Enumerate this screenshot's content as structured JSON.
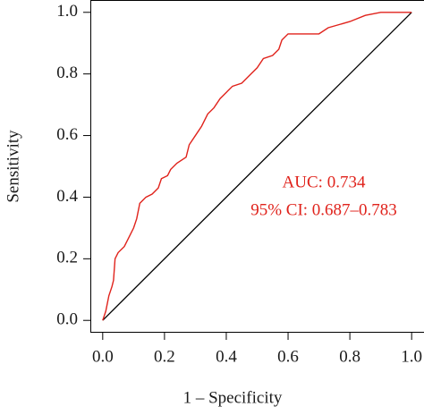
{
  "chart_data": {
    "type": "line",
    "x_label": "1 – Specificity",
    "y_label": "Sensitivity",
    "annotations": [
      "AUC: 0.734",
      "95% CI: 0.687–0.783"
    ],
    "annotation_color": "#e0231c",
    "color": "#e0231c",
    "x": [
      0,
      0.01,
      0.02,
      0.03,
      0.035,
      0.04,
      0.05,
      0.07,
      0.09,
      0.1,
      0.11,
      0.12,
      0.13,
      0.14,
      0.16,
      0.18,
      0.19,
      0.21,
      0.22,
      0.24,
      0.27,
      0.28,
      0.3,
      0.32,
      0.34,
      0.36,
      0.38,
      0.4,
      0.42,
      0.45,
      0.48,
      0.5,
      0.52,
      0.55,
      0.57,
      0.58,
      0.6,
      0.7,
      0.73,
      0.8,
      0.85,
      0.9,
      1.0
    ],
    "values": [
      0,
      0.03,
      0.08,
      0.11,
      0.13,
      0.2,
      0.22,
      0.24,
      0.28,
      0.3,
      0.33,
      0.38,
      0.39,
      0.4,
      0.41,
      0.43,
      0.46,
      0.47,
      0.49,
      0.51,
      0.53,
      0.57,
      0.6,
      0.63,
      0.67,
      0.69,
      0.72,
      0.74,
      0.76,
      0.77,
      0.8,
      0.82,
      0.85,
      0.86,
      0.88,
      0.91,
      0.93,
      0.93,
      0.95,
      0.97,
      0.99,
      1.0,
      1.0
    ],
    "diagonal": {
      "x": [
        0,
        1
      ],
      "y": [
        0,
        1
      ],
      "color": "#000000"
    },
    "xlim": [
      -0.04,
      1.04
    ],
    "ylim": [
      -0.04,
      1.04
    ],
    "xticks": [
      {
        "value": 0,
        "label": "0.0"
      },
      0.2,
      0.4,
      0.6,
      0.8,
      {
        "value": 1,
        "label": "1.0"
      }
    ],
    "yticks": [
      {
        "value": 0,
        "label": "0.0"
      },
      0.2,
      0.4,
      0.6,
      0.8,
      {
        "value": 1,
        "label": "1.0"
      }
    ]
  }
}
